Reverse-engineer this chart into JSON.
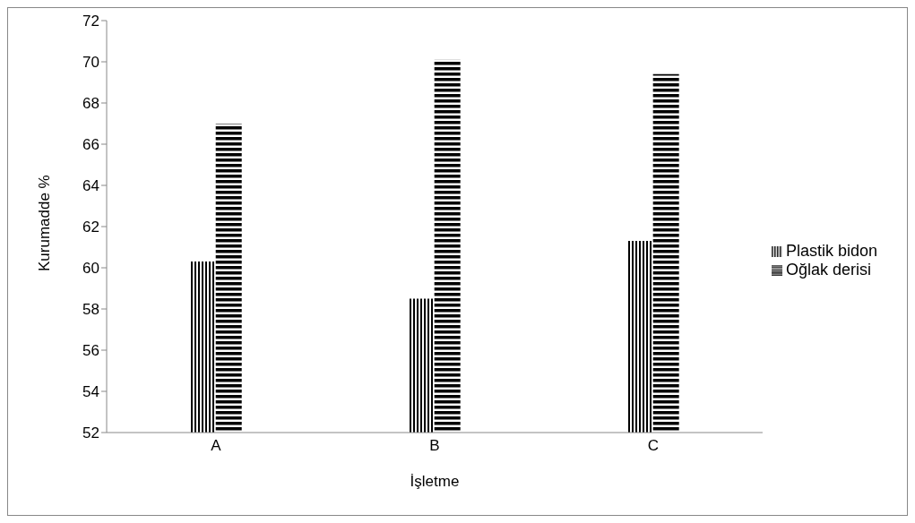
{
  "chart_data": {
    "type": "bar",
    "xlabel": "İşletme",
    "ylabel": "Kurumadde %",
    "categories": [
      "A",
      "B",
      "C"
    ],
    "series": [
      {
        "name": "Plastik bidon",
        "color": "#000000",
        "values": [
          60.3,
          58.5,
          61.3
        ]
      },
      {
        "name": "Oğlak derisi",
        "color": "#000000",
        "values": [
          67.0,
          70.1,
          69.4
        ]
      }
    ],
    "ylim": [
      52,
      72
    ],
    "yticks": [
      52,
      54,
      56,
      58,
      60,
      62,
      64,
      66,
      68,
      70,
      72
    ],
    "grid": false,
    "legend": "right"
  }
}
